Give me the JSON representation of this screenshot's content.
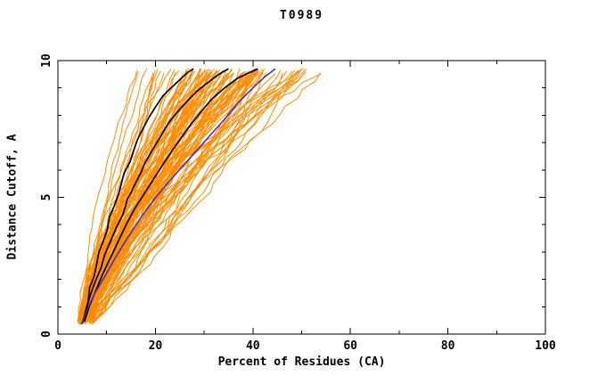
{
  "page": {
    "background": "#ffffff"
  },
  "chart_data": {
    "type": "line",
    "title": "T0989",
    "xlabel": "Percent of Residues (CA)",
    "ylabel": "Distance Cutoff, A",
    "xlim": [
      0,
      100
    ],
    "ylim": [
      0,
      10
    ],
    "x_major_ticks": [
      0,
      20,
      40,
      60,
      80,
      100
    ],
    "x_minor_step": 10,
    "y_major_ticks": [
      0,
      5,
      10
    ],
    "y_minor_step": 1,
    "grid": false,
    "legend": "none",
    "axis_color": "#000000",
    "series": [
      {
        "name": "highlight-curve-1",
        "color": "#000000",
        "width": 1.7,
        "points": [
          [
            5.2,
            0.45
          ],
          [
            5.6,
            0.8
          ],
          [
            6.2,
            1.2
          ],
          [
            6.5,
            1.7
          ],
          [
            7.4,
            2.1
          ],
          [
            8.0,
            2.6
          ],
          [
            8.4,
            3.0
          ],
          [
            9.3,
            3.4
          ],
          [
            10.1,
            3.8
          ],
          [
            10.6,
            4.3
          ],
          [
            11.6,
            4.7
          ],
          [
            12.4,
            5.1
          ],
          [
            13.0,
            5.5
          ],
          [
            13.6,
            5.9
          ],
          [
            14.8,
            6.3
          ],
          [
            15.5,
            6.7
          ],
          [
            16.3,
            7.1
          ],
          [
            17.4,
            7.5
          ],
          [
            18.6,
            7.9
          ],
          [
            20.0,
            8.3
          ],
          [
            21.5,
            8.7
          ],
          [
            23.2,
            9.0
          ],
          [
            25.0,
            9.3
          ],
          [
            26.5,
            9.55
          ],
          [
            27.8,
            9.7
          ]
        ]
      },
      {
        "name": "highlight-curve-2",
        "color": "#000000",
        "width": 1.7,
        "points": [
          [
            5.0,
            0.4
          ],
          [
            5.8,
            0.9
          ],
          [
            6.6,
            1.4
          ],
          [
            7.6,
            1.9
          ],
          [
            8.8,
            2.4
          ],
          [
            9.6,
            2.9
          ],
          [
            10.8,
            3.4
          ],
          [
            12.0,
            3.9
          ],
          [
            13.4,
            4.4
          ],
          [
            14.2,
            4.9
          ],
          [
            15.6,
            5.4
          ],
          [
            17.0,
            5.9
          ],
          [
            18.0,
            6.3
          ],
          [
            19.6,
            6.8
          ],
          [
            21.0,
            7.2
          ],
          [
            22.6,
            7.7
          ],
          [
            24.4,
            8.1
          ],
          [
            26.4,
            8.5
          ],
          [
            28.6,
            8.9
          ],
          [
            30.8,
            9.2
          ],
          [
            33.0,
            9.5
          ],
          [
            35.0,
            9.7
          ]
        ]
      },
      {
        "name": "highlight-curve-3",
        "color": "#000000",
        "width": 1.7,
        "points": [
          [
            5.4,
            0.45
          ],
          [
            6.4,
            1.0
          ],
          [
            7.8,
            1.6
          ],
          [
            9.2,
            2.2
          ],
          [
            10.8,
            2.8
          ],
          [
            12.4,
            3.4
          ],
          [
            14.0,
            4.0
          ],
          [
            15.8,
            4.6
          ],
          [
            17.6,
            5.1
          ],
          [
            19.4,
            5.6
          ],
          [
            21.2,
            6.1
          ],
          [
            23.0,
            6.6
          ],
          [
            25.0,
            7.1
          ],
          [
            27.0,
            7.6
          ],
          [
            29.2,
            8.1
          ],
          [
            31.6,
            8.6
          ],
          [
            34.2,
            9.0
          ],
          [
            36.8,
            9.35
          ],
          [
            39.2,
            9.55
          ],
          [
            41.0,
            9.7
          ]
        ]
      },
      {
        "name": "reference-curve-blue",
        "color": "#4030c8",
        "width": 1.6,
        "points": [
          [
            4.8,
            0.35
          ],
          [
            6.0,
            0.9
          ],
          [
            7.6,
            1.5
          ],
          [
            9.6,
            2.1
          ],
          [
            11.8,
            2.8
          ],
          [
            14.2,
            3.5
          ],
          [
            16.8,
            4.2
          ],
          [
            19.6,
            4.9
          ],
          [
            22.4,
            5.5
          ],
          [
            25.4,
            6.1
          ],
          [
            28.4,
            6.7
          ],
          [
            31.4,
            7.3
          ],
          [
            34.4,
            7.9
          ],
          [
            37.2,
            8.5
          ],
          [
            40.0,
            9.0
          ],
          [
            42.4,
            9.4
          ],
          [
            44.6,
            9.7
          ]
        ]
      }
    ],
    "ensemble": {
      "name": "prediction-model-curves",
      "color": "#ff8c00",
      "width": 1,
      "count": 105,
      "seed": 12,
      "points_per_curve": 30,
      "y_start_range": [
        0.35,
        0.6
      ],
      "y_end_range": [
        9.5,
        9.72
      ],
      "x_start_range": [
        4.0,
        7.5
      ],
      "x_end_range": [
        13,
        57
      ],
      "shape_exponent_range": [
        0.8,
        1.7
      ],
      "jitter": 0.35
    }
  }
}
